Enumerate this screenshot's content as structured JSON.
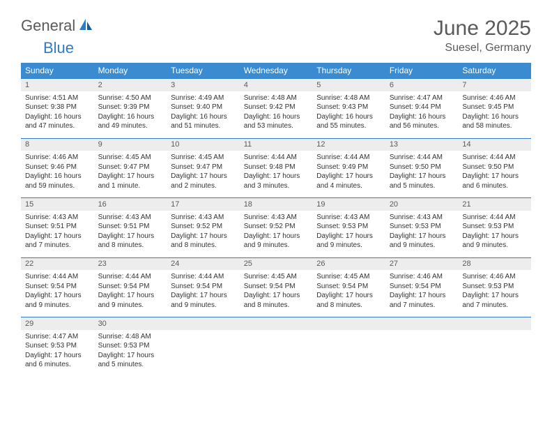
{
  "logo": {
    "part1": "General",
    "part2": "Blue"
  },
  "title": "June 2025",
  "location": "Suesel, Germany",
  "colors": {
    "header_bg": "#3b8bd0",
    "header_text": "#ffffff",
    "daynum_bg": "#ededed",
    "border": "#2f7cc4",
    "text_gray": "#5a5a5a",
    "body_text": "#333333"
  },
  "fonts": {
    "title_size": 30,
    "location_size": 16,
    "header_size": 12,
    "daynum_size": 11,
    "body_size": 10
  },
  "day_headers": [
    "Sunday",
    "Monday",
    "Tuesday",
    "Wednesday",
    "Thursday",
    "Friday",
    "Saturday"
  ],
  "weeks": [
    {
      "nums": [
        "1",
        "2",
        "3",
        "4",
        "5",
        "6",
        "7"
      ],
      "cells": [
        {
          "sunrise": "Sunrise: 4:51 AM",
          "sunset": "Sunset: 9:38 PM",
          "dl1": "Daylight: 16 hours",
          "dl2": "and 47 minutes."
        },
        {
          "sunrise": "Sunrise: 4:50 AM",
          "sunset": "Sunset: 9:39 PM",
          "dl1": "Daylight: 16 hours",
          "dl2": "and 49 minutes."
        },
        {
          "sunrise": "Sunrise: 4:49 AM",
          "sunset": "Sunset: 9:40 PM",
          "dl1": "Daylight: 16 hours",
          "dl2": "and 51 minutes."
        },
        {
          "sunrise": "Sunrise: 4:48 AM",
          "sunset": "Sunset: 9:42 PM",
          "dl1": "Daylight: 16 hours",
          "dl2": "and 53 minutes."
        },
        {
          "sunrise": "Sunrise: 4:48 AM",
          "sunset": "Sunset: 9:43 PM",
          "dl1": "Daylight: 16 hours",
          "dl2": "and 55 minutes."
        },
        {
          "sunrise": "Sunrise: 4:47 AM",
          "sunset": "Sunset: 9:44 PM",
          "dl1": "Daylight: 16 hours",
          "dl2": "and 56 minutes."
        },
        {
          "sunrise": "Sunrise: 4:46 AM",
          "sunset": "Sunset: 9:45 PM",
          "dl1": "Daylight: 16 hours",
          "dl2": "and 58 minutes."
        }
      ]
    },
    {
      "nums": [
        "8",
        "9",
        "10",
        "11",
        "12",
        "13",
        "14"
      ],
      "cells": [
        {
          "sunrise": "Sunrise: 4:46 AM",
          "sunset": "Sunset: 9:46 PM",
          "dl1": "Daylight: 16 hours",
          "dl2": "and 59 minutes."
        },
        {
          "sunrise": "Sunrise: 4:45 AM",
          "sunset": "Sunset: 9:47 PM",
          "dl1": "Daylight: 17 hours",
          "dl2": "and 1 minute."
        },
        {
          "sunrise": "Sunrise: 4:45 AM",
          "sunset": "Sunset: 9:47 PM",
          "dl1": "Daylight: 17 hours",
          "dl2": "and 2 minutes."
        },
        {
          "sunrise": "Sunrise: 4:44 AM",
          "sunset": "Sunset: 9:48 PM",
          "dl1": "Daylight: 17 hours",
          "dl2": "and 3 minutes."
        },
        {
          "sunrise": "Sunrise: 4:44 AM",
          "sunset": "Sunset: 9:49 PM",
          "dl1": "Daylight: 17 hours",
          "dl2": "and 4 minutes."
        },
        {
          "sunrise": "Sunrise: 4:44 AM",
          "sunset": "Sunset: 9:50 PM",
          "dl1": "Daylight: 17 hours",
          "dl2": "and 5 minutes."
        },
        {
          "sunrise": "Sunrise: 4:44 AM",
          "sunset": "Sunset: 9:50 PM",
          "dl1": "Daylight: 17 hours",
          "dl2": "and 6 minutes."
        }
      ]
    },
    {
      "nums": [
        "15",
        "16",
        "17",
        "18",
        "19",
        "20",
        "21"
      ],
      "cells": [
        {
          "sunrise": "Sunrise: 4:43 AM",
          "sunset": "Sunset: 9:51 PM",
          "dl1": "Daylight: 17 hours",
          "dl2": "and 7 minutes."
        },
        {
          "sunrise": "Sunrise: 4:43 AM",
          "sunset": "Sunset: 9:51 PM",
          "dl1": "Daylight: 17 hours",
          "dl2": "and 8 minutes."
        },
        {
          "sunrise": "Sunrise: 4:43 AM",
          "sunset": "Sunset: 9:52 PM",
          "dl1": "Daylight: 17 hours",
          "dl2": "and 8 minutes."
        },
        {
          "sunrise": "Sunrise: 4:43 AM",
          "sunset": "Sunset: 9:52 PM",
          "dl1": "Daylight: 17 hours",
          "dl2": "and 9 minutes."
        },
        {
          "sunrise": "Sunrise: 4:43 AM",
          "sunset": "Sunset: 9:53 PM",
          "dl1": "Daylight: 17 hours",
          "dl2": "and 9 minutes."
        },
        {
          "sunrise": "Sunrise: 4:43 AM",
          "sunset": "Sunset: 9:53 PM",
          "dl1": "Daylight: 17 hours",
          "dl2": "and 9 minutes."
        },
        {
          "sunrise": "Sunrise: 4:44 AM",
          "sunset": "Sunset: 9:53 PM",
          "dl1": "Daylight: 17 hours",
          "dl2": "and 9 minutes."
        }
      ]
    },
    {
      "nums": [
        "22",
        "23",
        "24",
        "25",
        "26",
        "27",
        "28"
      ],
      "cells": [
        {
          "sunrise": "Sunrise: 4:44 AM",
          "sunset": "Sunset: 9:54 PM",
          "dl1": "Daylight: 17 hours",
          "dl2": "and 9 minutes."
        },
        {
          "sunrise": "Sunrise: 4:44 AM",
          "sunset": "Sunset: 9:54 PM",
          "dl1": "Daylight: 17 hours",
          "dl2": "and 9 minutes."
        },
        {
          "sunrise": "Sunrise: 4:44 AM",
          "sunset": "Sunset: 9:54 PM",
          "dl1": "Daylight: 17 hours",
          "dl2": "and 9 minutes."
        },
        {
          "sunrise": "Sunrise: 4:45 AM",
          "sunset": "Sunset: 9:54 PM",
          "dl1": "Daylight: 17 hours",
          "dl2": "and 8 minutes."
        },
        {
          "sunrise": "Sunrise: 4:45 AM",
          "sunset": "Sunset: 9:54 PM",
          "dl1": "Daylight: 17 hours",
          "dl2": "and 8 minutes."
        },
        {
          "sunrise": "Sunrise: 4:46 AM",
          "sunset": "Sunset: 9:54 PM",
          "dl1": "Daylight: 17 hours",
          "dl2": "and 7 minutes."
        },
        {
          "sunrise": "Sunrise: 4:46 AM",
          "sunset": "Sunset: 9:53 PM",
          "dl1": "Daylight: 17 hours",
          "dl2": "and 7 minutes."
        }
      ]
    },
    {
      "nums": [
        "29",
        "30",
        "",
        "",
        "",
        "",
        ""
      ],
      "cells": [
        {
          "sunrise": "Sunrise: 4:47 AM",
          "sunset": "Sunset: 9:53 PM",
          "dl1": "Daylight: 17 hours",
          "dl2": "and 6 minutes."
        },
        {
          "sunrise": "Sunrise: 4:48 AM",
          "sunset": "Sunset: 9:53 PM",
          "dl1": "Daylight: 17 hours",
          "dl2": "and 5 minutes."
        },
        null,
        null,
        null,
        null,
        null
      ]
    }
  ]
}
